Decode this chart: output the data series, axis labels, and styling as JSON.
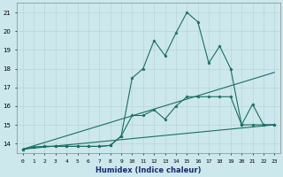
{
  "xlabel": "Humidex (Indice chaleur)",
  "background_color": "#cce8ec",
  "grid_color": "#b8d4d8",
  "line_color": "#1a6e64",
  "xlim": [
    -0.5,
    23.5
  ],
  "ylim": [
    13.5,
    21.5
  ],
  "xticks": [
    0,
    1,
    2,
    3,
    4,
    5,
    6,
    7,
    8,
    9,
    10,
    11,
    12,
    13,
    14,
    15,
    16,
    17,
    18,
    19,
    20,
    21,
    22,
    23
  ],
  "yticks": [
    14,
    15,
    16,
    17,
    18,
    19,
    20,
    21
  ],
  "series": {
    "line_spike": {
      "x": [
        0,
        1,
        2,
        3,
        4,
        5,
        6,
        7,
        8,
        9,
        10,
        11,
        12,
        13,
        14,
        15,
        16,
        17,
        18,
        19,
        20,
        21,
        22,
        23
      ],
      "y": [
        13.7,
        13.8,
        13.85,
        13.85,
        13.85,
        13.85,
        13.85,
        13.85,
        13.9,
        14.4,
        17.5,
        18.0,
        19.5,
        18.7,
        19.9,
        21.0,
        20.5,
        18.3,
        19.2,
        18.0,
        15.0,
        15.0,
        15.0,
        15.0
      ]
    },
    "line_mid": {
      "x": [
        0,
        1,
        2,
        3,
        4,
        5,
        6,
        7,
        8,
        9,
        10,
        11,
        12,
        13,
        14,
        15,
        16,
        17,
        18,
        19,
        20,
        21,
        22,
        23
      ],
      "y": [
        13.7,
        13.8,
        13.85,
        13.85,
        13.85,
        13.85,
        13.85,
        13.85,
        13.9,
        14.4,
        15.5,
        15.5,
        15.8,
        15.3,
        16.0,
        16.5,
        16.5,
        16.5,
        16.5,
        16.5,
        15.0,
        16.1,
        15.0,
        15.0
      ]
    },
    "trend1": {
      "x": [
        0,
        23
      ],
      "y": [
        13.7,
        17.8
      ]
    },
    "trend2": {
      "x": [
        0,
        23
      ],
      "y": [
        13.7,
        15.0
      ]
    }
  }
}
